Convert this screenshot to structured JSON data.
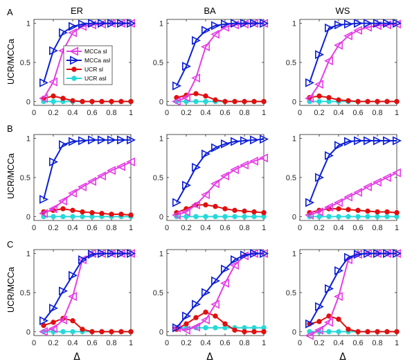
{
  "figure": {
    "column_titles": [
      "ER",
      "BA",
      "WS"
    ],
    "row_labels": [
      "A",
      "B",
      "C"
    ],
    "ylabel": "UCR/MCCa",
    "xlabel": "Δ",
    "x_ticks": [
      "0",
      "0.2",
      "0.4",
      "0.6",
      "0.8",
      "1"
    ],
    "y_ticks": [
      "0",
      "0.5",
      "1"
    ]
  },
  "legend": {
    "entries": [
      {
        "label": "MCCa sl",
        "color": "#e53ee5",
        "marker": "triangle-left"
      },
      {
        "label": "MCCa asl",
        "color": "#0a1ed6",
        "marker": "triangle-right"
      },
      {
        "label": "UCR sl",
        "color": "#e01010",
        "marker": "circle"
      },
      {
        "label": "UCR asl",
        "color": "#26d9d9",
        "marker": "circle"
      }
    ]
  },
  "chart_data": [
    {
      "type": "line",
      "panel": "A-ER",
      "x": [
        0.1,
        0.2,
        0.3,
        0.4,
        0.5,
        0.6,
        0.7,
        0.8,
        0.9,
        1.0
      ],
      "xlim": [
        0,
        1
      ],
      "ylim": [
        -0.05,
        1.05
      ],
      "series": [
        {
          "name": "MCCa sl",
          "values": [
            0.04,
            0.25,
            0.65,
            0.88,
            0.96,
            0.98,
            0.99,
            1.0,
            1.0,
            1.0
          ]
        },
        {
          "name": "MCCa asl",
          "values": [
            0.24,
            0.65,
            0.88,
            0.96,
            0.99,
            1.0,
            1.0,
            1.0,
            1.0,
            1.0
          ]
        },
        {
          "name": "UCR sl",
          "values": [
            0.04,
            0.07,
            0.04,
            0.01,
            0.0,
            0.0,
            0.0,
            0.0,
            0.0,
            0.0
          ]
        },
        {
          "name": "UCR asl",
          "values": [
            0.0,
            0.0,
            0.0,
            0.0,
            0.0,
            0.0,
            0.0,
            0.0,
            0.0,
            0.0
          ]
        }
      ]
    },
    {
      "type": "line",
      "panel": "A-BA",
      "x": [
        0.1,
        0.2,
        0.3,
        0.4,
        0.5,
        0.6,
        0.7,
        0.8,
        0.9,
        1.0
      ],
      "xlim": [
        0,
        1
      ],
      "ylim": [
        -0.05,
        1.05
      ],
      "series": [
        {
          "name": "MCCa sl",
          "values": [
            0.0,
            0.05,
            0.3,
            0.7,
            0.86,
            0.95,
            0.98,
            0.99,
            1.0,
            1.0
          ]
        },
        {
          "name": "MCCa asl",
          "values": [
            0.2,
            0.45,
            0.78,
            0.91,
            0.97,
            0.99,
            1.0,
            1.0,
            1.0,
            1.0
          ]
        },
        {
          "name": "UCR sl",
          "values": [
            0.05,
            0.08,
            0.1,
            0.07,
            0.02,
            0.0,
            0.0,
            0.0,
            0.0,
            0.0
          ]
        },
        {
          "name": "UCR asl",
          "values": [
            0.0,
            0.0,
            0.0,
            0.0,
            0.0,
            0.0,
            0.0,
            0.0,
            0.0,
            0.0
          ]
        }
      ]
    },
    {
      "type": "line",
      "panel": "A-WS",
      "x": [
        0.1,
        0.2,
        0.3,
        0.4,
        0.5,
        0.6,
        0.7,
        0.8,
        0.9,
        1.0
      ],
      "xlim": [
        0,
        1
      ],
      "ylim": [
        -0.05,
        1.05
      ],
      "series": [
        {
          "name": "MCCa sl",
          "values": [
            0.04,
            0.22,
            0.52,
            0.72,
            0.84,
            0.91,
            0.95,
            0.97,
            0.98,
            0.99
          ]
        },
        {
          "name": "MCCa asl",
          "values": [
            0.24,
            0.6,
            0.94,
            0.98,
            0.99,
            1.0,
            1.0,
            1.0,
            1.0,
            1.0
          ]
        },
        {
          "name": "UCR sl",
          "values": [
            0.05,
            0.07,
            0.05,
            0.02,
            0.01,
            0.0,
            0.0,
            0.0,
            0.0,
            0.0
          ]
        },
        {
          "name": "UCR asl",
          "values": [
            0.0,
            0.0,
            0.0,
            0.0,
            0.0,
            0.0,
            0.0,
            0.0,
            0.0,
            0.0
          ]
        }
      ]
    },
    {
      "type": "line",
      "panel": "B-ER",
      "x": [
        0.1,
        0.2,
        0.3,
        0.4,
        0.5,
        0.6,
        0.7,
        0.8,
        0.9,
        1.0
      ],
      "xlim": [
        0,
        1
      ],
      "ylim": [
        -0.05,
        1.05
      ],
      "series": [
        {
          "name": "MCCa sl",
          "values": [
            0.04,
            0.1,
            0.2,
            0.3,
            0.38,
            0.45,
            0.52,
            0.59,
            0.64,
            0.7
          ]
        },
        {
          "name": "MCCa asl",
          "values": [
            0.22,
            0.7,
            0.92,
            0.96,
            0.97,
            0.98,
            0.98,
            0.98,
            0.98,
            0.98
          ]
        },
        {
          "name": "UCR sl",
          "values": [
            0.06,
            0.08,
            0.1,
            0.08,
            0.06,
            0.05,
            0.04,
            0.03,
            0.03,
            0.02
          ]
        },
        {
          "name": "UCR asl",
          "values": [
            0.0,
            0.0,
            0.0,
            0.0,
            0.0,
            0.0,
            0.0,
            0.0,
            0.0,
            0.0
          ]
        }
      ]
    },
    {
      "type": "line",
      "panel": "B-BA",
      "x": [
        0.1,
        0.2,
        0.3,
        0.4,
        0.5,
        0.6,
        0.7,
        0.8,
        0.9,
        1.0
      ],
      "xlim": [
        0,
        1
      ],
      "ylim": [
        -0.05,
        1.05
      ],
      "series": [
        {
          "name": "MCCa sl",
          "values": [
            0.02,
            0.06,
            0.15,
            0.28,
            0.42,
            0.52,
            0.6,
            0.66,
            0.71,
            0.75
          ]
        },
        {
          "name": "MCCa asl",
          "values": [
            0.18,
            0.4,
            0.63,
            0.8,
            0.88,
            0.93,
            0.96,
            0.97,
            0.98,
            0.99
          ]
        },
        {
          "name": "UCR sl",
          "values": [
            0.05,
            0.1,
            0.15,
            0.15,
            0.13,
            0.1,
            0.08,
            0.07,
            0.06,
            0.05
          ]
        },
        {
          "name": "UCR asl",
          "values": [
            0.0,
            0.0,
            0.0,
            0.0,
            0.0,
            0.0,
            0.0,
            0.0,
            0.0,
            0.0
          ]
        }
      ]
    },
    {
      "type": "line",
      "panel": "B-WS",
      "x": [
        0.1,
        0.2,
        0.3,
        0.4,
        0.5,
        0.6,
        0.7,
        0.8,
        0.9,
        1.0
      ],
      "xlim": [
        0,
        1
      ],
      "ylim": [
        -0.05,
        1.05
      ],
      "series": [
        {
          "name": "MCCa sl",
          "values": [
            0.02,
            0.06,
            0.12,
            0.18,
            0.25,
            0.31,
            0.38,
            0.44,
            0.5,
            0.56
          ]
        },
        {
          "name": "MCCa asl",
          "values": [
            0.18,
            0.5,
            0.78,
            0.91,
            0.96,
            0.97,
            0.97,
            0.97,
            0.97,
            0.97
          ]
        },
        {
          "name": "UCR sl",
          "values": [
            0.05,
            0.08,
            0.1,
            0.1,
            0.09,
            0.08,
            0.07,
            0.06,
            0.06,
            0.05
          ]
        },
        {
          "name": "UCR asl",
          "values": [
            0.0,
            0.0,
            0.0,
            0.0,
            0.0,
            0.0,
            0.0,
            0.0,
            0.0,
            0.0
          ]
        }
      ]
    },
    {
      "type": "line",
      "panel": "C-ER",
      "x": [
        0.1,
        0.2,
        0.3,
        0.4,
        0.5,
        0.6,
        0.7,
        0.8,
        0.9,
        1.0
      ],
      "xlim": [
        0,
        1
      ],
      "ylim": [
        -0.05,
        1.05
      ],
      "series": [
        {
          "name": "MCCa sl",
          "values": [
            0.0,
            0.04,
            0.15,
            0.45,
            0.92,
            1.0,
            1.0,
            1.0,
            1.0,
            1.0
          ]
        },
        {
          "name": "MCCa asl",
          "values": [
            0.14,
            0.3,
            0.52,
            0.72,
            0.92,
            0.99,
            1.0,
            1.0,
            1.0,
            1.0
          ]
        },
        {
          "name": "UCR sl",
          "values": [
            0.08,
            0.12,
            0.17,
            0.14,
            0.03,
            0.0,
            0.0,
            0.0,
            0.0,
            0.0
          ]
        },
        {
          "name": "UCR asl",
          "values": [
            0.0,
            0.0,
            0.0,
            0.0,
            0.0,
            0.0,
            0.0,
            0.0,
            0.0,
            0.0
          ]
        }
      ]
    },
    {
      "type": "line",
      "panel": "C-BA",
      "x": [
        0.1,
        0.2,
        0.3,
        0.4,
        0.5,
        0.6,
        0.7,
        0.8,
        0.9,
        1.0
      ],
      "xlim": [
        0,
        1
      ],
      "ylim": [
        -0.05,
        1.05
      ],
      "series": [
        {
          "name": "MCCa sl",
          "values": [
            0.05,
            0.02,
            0.06,
            0.15,
            0.35,
            0.62,
            0.85,
            0.97,
            1.0,
            1.0
          ]
        },
        {
          "name": "MCCa asl",
          "values": [
            0.05,
            0.2,
            0.35,
            0.5,
            0.65,
            0.8,
            0.92,
            0.98,
            1.0,
            1.0
          ]
        },
        {
          "name": "UCR sl",
          "values": [
            0.03,
            0.1,
            0.18,
            0.25,
            0.2,
            0.1,
            0.02,
            0.0,
            0.0,
            0.0
          ]
        },
        {
          "name": "UCR asl",
          "values": [
            0.05,
            0.05,
            0.05,
            0.05,
            0.05,
            0.05,
            0.05,
            0.05,
            0.05,
            0.05
          ]
        }
      ]
    },
    {
      "type": "line",
      "panel": "C-WS",
      "x": [
        0.1,
        0.2,
        0.3,
        0.4,
        0.5,
        0.6,
        0.7,
        0.8,
        0.9,
        1.0
      ],
      "xlim": [
        0,
        1
      ],
      "ylim": [
        -0.05,
        1.05
      ],
      "series": [
        {
          "name": "MCCa sl",
          "values": [
            -0.05,
            0.02,
            0.12,
            0.45,
            0.92,
            0.99,
            1.0,
            1.0,
            1.0,
            1.0
          ]
        },
        {
          "name": "MCCa asl",
          "values": [
            0.1,
            0.32,
            0.55,
            0.78,
            0.95,
            0.99,
            1.0,
            1.0,
            1.0,
            1.0
          ]
        },
        {
          "name": "UCR sl",
          "values": [
            0.1,
            0.13,
            0.2,
            0.16,
            0.03,
            0.0,
            0.0,
            0.0,
            0.0,
            0.0
          ]
        },
        {
          "name": "UCR asl",
          "values": [
            0.0,
            0.0,
            0.0,
            0.0,
            0.0,
            0.0,
            0.0,
            0.0,
            0.0,
            0.0
          ]
        }
      ]
    }
  ]
}
